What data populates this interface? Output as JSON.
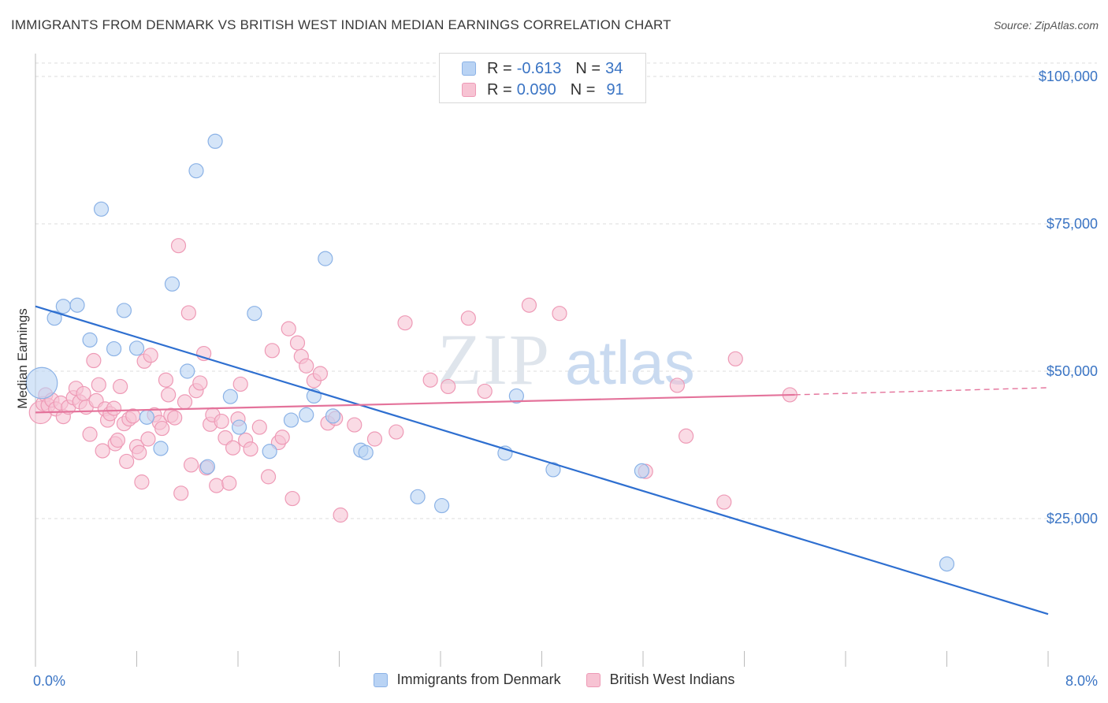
{
  "header": {
    "title": "IMMIGRANTS FROM DENMARK VS BRITISH WEST INDIAN MEDIAN EARNINGS CORRELATION CHART",
    "source": "Source: ZipAtlas.com"
  },
  "legend_top": {
    "rows": [
      {
        "r_label": "R =",
        "r_value": "-0.613",
        "n_label": "N =",
        "n_value": "34"
      },
      {
        "r_label": "R =",
        "r_value": "0.090",
        "n_label": "N =",
        "n_value": "91"
      }
    ]
  },
  "legend_bottom": {
    "items": [
      {
        "label": "Immigrants from Denmark"
      },
      {
        "label": "British West Indians"
      }
    ]
  },
  "watermark": {
    "zip": "ZIP",
    "atlas": "atlas"
  },
  "colors": {
    "blue_fill": "#b9d3f4",
    "blue_stroke": "#8bb2e6",
    "blue_line": "#2e6fd0",
    "pink_fill": "#f7c3d3",
    "pink_stroke": "#ee9ab6",
    "pink_line": "#e4739b",
    "tick_text": "#3a74c4",
    "grid": "#dddddd"
  },
  "chart_data": {
    "type": "scatter",
    "xlabel": "",
    "ylabel": "Median Earnings",
    "xlim": [
      0,
      8
    ],
    "ylim": [
      0,
      100000
    ],
    "x_tick_labels": [
      "0.0%",
      "8.0%"
    ],
    "y_ticks": [
      {
        "value": 25000,
        "label": "$25,000"
      },
      {
        "value": 50000,
        "label": "$50,000"
      },
      {
        "value": 75000,
        "label": "$75,000"
      },
      {
        "value": 100000,
        "label": "$100,000"
      }
    ],
    "series": [
      {
        "name": "Immigrants from Denmark",
        "color": "blue",
        "points": [
          [
            0.05,
            48000,
            3
          ],
          [
            0.15,
            59000,
            1
          ],
          [
            0.22,
            61000,
            1
          ],
          [
            0.33,
            61200,
            1
          ],
          [
            0.52,
            77500,
            1
          ],
          [
            0.43,
            55300,
            1
          ],
          [
            0.62,
            53800,
            1
          ],
          [
            0.7,
            60300,
            1
          ],
          [
            0.8,
            53900,
            1
          ],
          [
            0.88,
            42200,
            1
          ],
          [
            0.99,
            36900,
            1
          ],
          [
            1.08,
            64800,
            1
          ],
          [
            1.2,
            50000,
            1
          ],
          [
            1.27,
            84000,
            1
          ],
          [
            1.36,
            33800,
            1
          ],
          [
            1.42,
            89000,
            1
          ],
          [
            1.54,
            45700,
            1
          ],
          [
            1.61,
            40500,
            1
          ],
          [
            1.73,
            59800,
            1
          ],
          [
            1.85,
            36400,
            1
          ],
          [
            2.02,
            41700,
            1
          ],
          [
            2.14,
            42600,
            1
          ],
          [
            2.2,
            45800,
            1
          ],
          [
            2.29,
            69100,
            1
          ],
          [
            2.35,
            42400,
            1
          ],
          [
            2.57,
            36600,
            1
          ],
          [
            2.61,
            36200,
            1
          ],
          [
            3.02,
            28700,
            1
          ],
          [
            3.21,
            27200,
            1
          ],
          [
            3.71,
            36100,
            1
          ],
          [
            3.8,
            45800,
            1
          ],
          [
            4.09,
            33300,
            1
          ],
          [
            4.79,
            33100,
            1
          ],
          [
            7.2,
            17300,
            1
          ]
        ],
        "trend": [
          [
            0.0,
            61000
          ],
          [
            8.0,
            8800
          ]
        ]
      },
      {
        "name": "British West Indians",
        "color": "pink",
        "points": [
          [
            0.04,
            43000,
            2
          ],
          [
            0.06,
            44500,
            1
          ],
          [
            0.08,
            46000,
            1
          ],
          [
            0.1,
            44200,
            1
          ],
          [
            0.13,
            45100,
            1
          ],
          [
            0.16,
            43600,
            1
          ],
          [
            0.2,
            44600,
            1
          ],
          [
            0.22,
            42300,
            1
          ],
          [
            0.26,
            43900,
            1
          ],
          [
            0.3,
            45500,
            1
          ],
          [
            0.32,
            47100,
            1
          ],
          [
            0.35,
            44800,
            1
          ],
          [
            0.38,
            46200,
            1
          ],
          [
            0.4,
            43900,
            1
          ],
          [
            0.43,
            39300,
            1
          ],
          [
            0.46,
            51800,
            1
          ],
          [
            0.48,
            45000,
            1
          ],
          [
            0.5,
            47700,
            1
          ],
          [
            0.53,
            36500,
            1
          ],
          [
            0.55,
            43600,
            1
          ],
          [
            0.57,
            41700,
            1
          ],
          [
            0.59,
            42800,
            1
          ],
          [
            0.62,
            43700,
            1
          ],
          [
            0.63,
            37700,
            1
          ],
          [
            0.65,
            38300,
            1
          ],
          [
            0.67,
            47400,
            1
          ],
          [
            0.7,
            41100,
            1
          ],
          [
            0.72,
            34700,
            1
          ],
          [
            0.74,
            41900,
            1
          ],
          [
            0.77,
            42400,
            1
          ],
          [
            0.8,
            37200,
            1
          ],
          [
            0.82,
            36200,
            1
          ],
          [
            0.84,
            31200,
            1
          ],
          [
            0.86,
            51700,
            1
          ],
          [
            0.89,
            38500,
            1
          ],
          [
            0.91,
            52700,
            1
          ],
          [
            0.94,
            42600,
            1
          ],
          [
            0.98,
            41300,
            1
          ],
          [
            1.0,
            40300,
            1
          ],
          [
            1.03,
            48500,
            1
          ],
          [
            1.05,
            46000,
            1
          ],
          [
            1.07,
            42500,
            1
          ],
          [
            1.1,
            42100,
            1
          ],
          [
            1.13,
            71300,
            1
          ],
          [
            1.15,
            29300,
            1
          ],
          [
            1.18,
            44800,
            1
          ],
          [
            1.21,
            59900,
            1
          ],
          [
            1.23,
            34100,
            1
          ],
          [
            1.27,
            46700,
            1
          ],
          [
            1.3,
            48000,
            1
          ],
          [
            1.33,
            53000,
            1
          ],
          [
            1.35,
            33600,
            1
          ],
          [
            1.38,
            41000,
            1
          ],
          [
            1.4,
            42600,
            1
          ],
          [
            1.43,
            30600,
            1
          ],
          [
            1.47,
            41500,
            1
          ],
          [
            1.5,
            38700,
            1
          ],
          [
            1.53,
            31000,
            1
          ],
          [
            1.56,
            37000,
            1
          ],
          [
            1.6,
            41900,
            1
          ],
          [
            1.62,
            47800,
            1
          ],
          [
            1.66,
            38300,
            1
          ],
          [
            1.7,
            36800,
            1
          ],
          [
            1.77,
            40500,
            1
          ],
          [
            1.84,
            32100,
            1
          ],
          [
            1.87,
            53500,
            1
          ],
          [
            1.92,
            37900,
            1
          ],
          [
            1.95,
            38800,
            1
          ],
          [
            2.0,
            57200,
            1
          ],
          [
            2.03,
            28400,
            1
          ],
          [
            2.07,
            54800,
            1
          ],
          [
            2.1,
            52500,
            1
          ],
          [
            2.14,
            50900,
            1
          ],
          [
            2.2,
            48400,
            1
          ],
          [
            2.25,
            49600,
            1
          ],
          [
            2.31,
            41200,
            1
          ],
          [
            2.37,
            42000,
            1
          ],
          [
            2.41,
            25600,
            1
          ],
          [
            2.52,
            40900,
            1
          ],
          [
            2.68,
            38500,
            1
          ],
          [
            2.85,
            39700,
            1
          ],
          [
            2.92,
            58200,
            1
          ],
          [
            3.12,
            48500,
            1
          ],
          [
            3.26,
            47400,
            1
          ],
          [
            3.42,
            59000,
            1
          ],
          [
            3.55,
            46600,
            1
          ],
          [
            3.9,
            61200,
            1
          ],
          [
            4.14,
            59800,
            1
          ],
          [
            4.82,
            33000,
            1
          ],
          [
            5.07,
            47600,
            1
          ],
          [
            5.14,
            39000,
            1
          ],
          [
            5.44,
            27800,
            1
          ],
          [
            5.53,
            52100,
            1
          ],
          [
            5.96,
            46000,
            1
          ]
        ],
        "trend": [
          [
            0.0,
            43000
          ],
          [
            6.0,
            46000
          ]
        ],
        "trend_dashed": [
          [
            6.0,
            46000
          ],
          [
            8.0,
            47200
          ]
        ]
      }
    ]
  }
}
